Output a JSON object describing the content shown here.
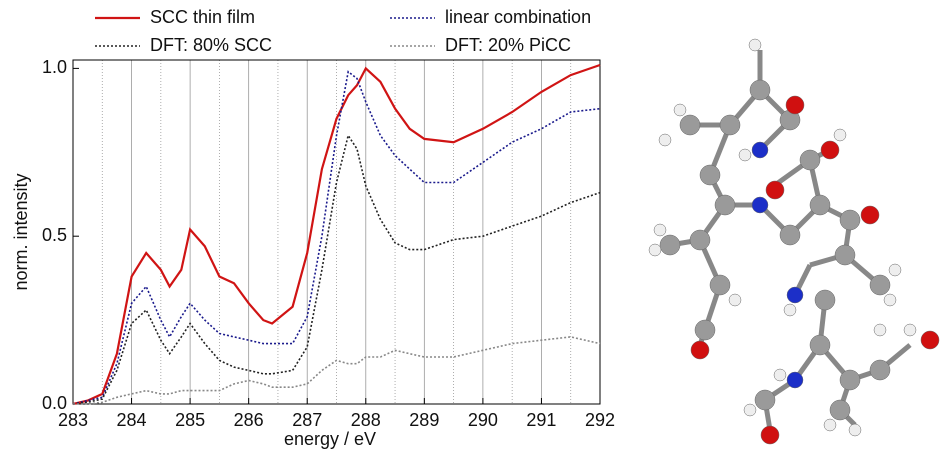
{
  "chart_data": {
    "type": "line",
    "x_label": "energy / eV",
    "y_label": "norm. intensity",
    "xlim": [
      283,
      292
    ],
    "ylim": [
      0,
      1.025
    ],
    "xticks": [
      283,
      284,
      285,
      286,
      287,
      288,
      289,
      290,
      291,
      292
    ],
    "xminorticks": [
      283.5,
      284.5,
      285.5,
      286.5,
      287.5,
      288.5,
      289.5,
      290.5,
      291.5
    ],
    "yticks": [
      {
        "value": 0,
        "label": "0.0"
      },
      {
        "value": 0.5,
        "label": "0.5"
      },
      {
        "value": 1,
        "label": "1.0"
      }
    ],
    "grid": true,
    "x": [
      283,
      283.25,
      283.5,
      283.75,
      284,
      284.25,
      284.5,
      284.65,
      284.85,
      285,
      285.25,
      285.5,
      285.75,
      286,
      286.25,
      286.4,
      286.75,
      287,
      287.25,
      287.5,
      287.7,
      287.85,
      288,
      288.25,
      288.5,
      288.75,
      289,
      289.5,
      290,
      290.5,
      291,
      291.5,
      292
    ],
    "series": [
      {
        "name": "SCC thin film",
        "color": "#d01414",
        "style": "solid",
        "values": [
          0,
          0.01,
          0.03,
          0.15,
          0.38,
          0.45,
          0.4,
          0.35,
          0.4,
          0.52,
          0.47,
          0.38,
          0.36,
          0.3,
          0.25,
          0.24,
          0.29,
          0.45,
          0.7,
          0.85,
          0.92,
          0.95,
          1.0,
          0.96,
          0.88,
          0.82,
          0.79,
          0.78,
          0.82,
          0.87,
          0.93,
          0.98,
          1.01
        ]
      },
      {
        "name": "linear combination",
        "color": "#1a1a8c",
        "style": "dotted",
        "values": [
          0,
          0.01,
          0.02,
          0.12,
          0.3,
          0.35,
          0.25,
          0.2,
          0.26,
          0.3,
          0.25,
          0.21,
          0.2,
          0.19,
          0.18,
          0.18,
          0.18,
          0.26,
          0.5,
          0.8,
          0.99,
          0.97,
          0.9,
          0.8,
          0.74,
          0.7,
          0.66,
          0.66,
          0.72,
          0.78,
          0.82,
          0.87,
          0.88
        ]
      },
      {
        "name": "DFT: 80% SCC",
        "color": "#222222",
        "style": "dotted",
        "values": [
          0,
          0.005,
          0.015,
          0.1,
          0.24,
          0.28,
          0.19,
          0.15,
          0.2,
          0.24,
          0.18,
          0.13,
          0.11,
          0.1,
          0.09,
          0.09,
          0.1,
          0.17,
          0.4,
          0.66,
          0.8,
          0.76,
          0.65,
          0.55,
          0.48,
          0.46,
          0.46,
          0.49,
          0.5,
          0.53,
          0.56,
          0.6,
          0.63
        ]
      },
      {
        "name": "DFT: 20% PiCC",
        "color": "#888888",
        "style": "dotted",
        "values": [
          0,
          0,
          0.005,
          0.02,
          0.03,
          0.04,
          0.03,
          0.03,
          0.04,
          0.04,
          0.04,
          0.04,
          0.06,
          0.07,
          0.06,
          0.05,
          0.05,
          0.06,
          0.1,
          0.13,
          0.12,
          0.12,
          0.14,
          0.14,
          0.16,
          0.15,
          0.14,
          0.14,
          0.16,
          0.18,
          0.19,
          0.2,
          0.18
        ]
      }
    ]
  }
}
